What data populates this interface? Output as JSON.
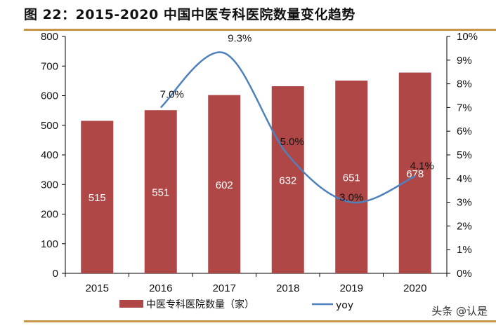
{
  "title": "图 22：2015-2020 中国中医专科医院数量变化趋势",
  "watermark": "头条 @认是",
  "chart_data": {
    "type": "bar+line",
    "categories": [
      "2015",
      "2016",
      "2017",
      "2018",
      "2019",
      "2020"
    ],
    "series": [
      {
        "name": "中医专科医院数量（家）",
        "type": "bar",
        "axis": "left",
        "color": "#AE4745",
        "values": [
          515,
          551,
          602,
          632,
          651,
          678
        ],
        "labels": [
          "515",
          "551",
          "602",
          "632",
          "651",
          "678"
        ]
      },
      {
        "name": "yoy",
        "type": "line",
        "axis": "right",
        "color": "#4F81BD",
        "smooth": true,
        "values": [
          null,
          7.0,
          9.3,
          5.0,
          3.0,
          4.1
        ],
        "labels": [
          "",
          "7.0%",
          "9.3%",
          "5.0%",
          "3.0%",
          "4.1%"
        ]
      }
    ],
    "ylim_left": [
      0,
      800
    ],
    "yticks_left": [
      "0",
      "100",
      "200",
      "300",
      "400",
      "500",
      "600",
      "700",
      "800"
    ],
    "ylim_right": [
      0,
      10
    ],
    "yticks_right": [
      "0%",
      "1%",
      "2%",
      "3%",
      "4%",
      "5%",
      "6%",
      "7%",
      "8%",
      "9%",
      "10%"
    ],
    "grid": false,
    "legend": "bottom"
  }
}
